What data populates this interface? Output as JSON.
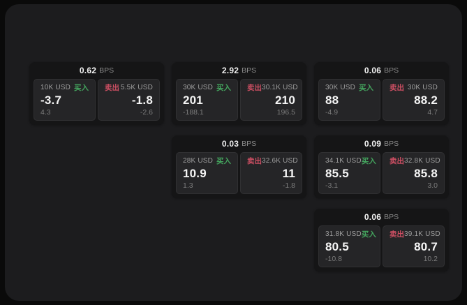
{
  "labels": {
    "bps": "BPS",
    "buy": "买入",
    "sell": "卖出"
  },
  "colors": {
    "buy": "#44a55e",
    "sell": "#cd4f63"
  },
  "cards": [
    {
      "row": 1,
      "col": 1,
      "bps": "0.62",
      "buy": {
        "size": "10K USD",
        "price": "-3.7",
        "delta": "4.3"
      },
      "sell": {
        "size": "5.5K USD",
        "price": "-1.8",
        "delta": "-2.6"
      }
    },
    {
      "row": 1,
      "col": 2,
      "bps": "2.92",
      "buy": {
        "size": "30K USD",
        "price": "201",
        "delta": "-188.1"
      },
      "sell": {
        "size": "30.1K USD",
        "price": "210",
        "delta": "196.5"
      }
    },
    {
      "row": 1,
      "col": 3,
      "bps": "0.06",
      "buy": {
        "size": "30K USD",
        "price": "88",
        "delta": "-4.9"
      },
      "sell": {
        "size": "30K USD",
        "price": "88.2",
        "delta": "4.7"
      }
    },
    {
      "row": 2,
      "col": 2,
      "bps": "0.03",
      "buy": {
        "size": "28K USD",
        "price": "10.9",
        "delta": "1.3"
      },
      "sell": {
        "size": "32.6K USD",
        "price": "11",
        "delta": "-1.8"
      }
    },
    {
      "row": 2,
      "col": 3,
      "bps": "0.09",
      "buy": {
        "size": "34.1K USD",
        "price": "85.5",
        "delta": "-3.1"
      },
      "sell": {
        "size": "32.8K USD",
        "price": "85.8",
        "delta": "3.0"
      }
    },
    {
      "row": 3,
      "col": 3,
      "bps": "0.06",
      "buy": {
        "size": "31.8K USD",
        "price": "80.5",
        "delta": "-10.8"
      },
      "sell": {
        "size": "39.1K USD",
        "price": "80.7",
        "delta": "10.2"
      }
    }
  ]
}
